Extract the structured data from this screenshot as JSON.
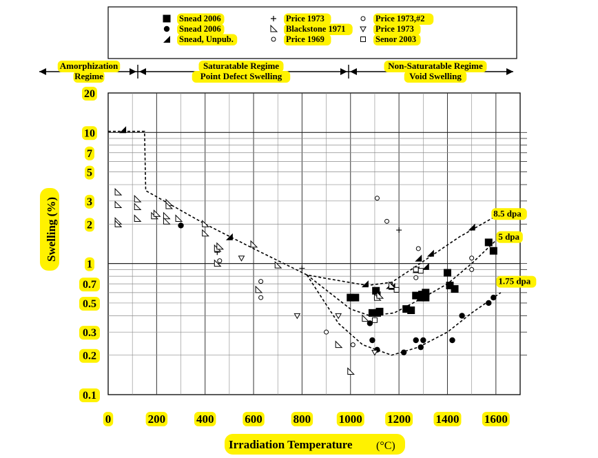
{
  "chart_data": {
    "type": "scatter",
    "title": "",
    "xlabel": "Irradiation Temperature",
    "xlabel_unit": "(°C)",
    "ylabel": "Swelling (%)",
    "x_scale": "linear",
    "y_scale": "log",
    "xlim": [
      0,
      1700
    ],
    "ylim": [
      0.1,
      20
    ],
    "x_ticks": [
      "0",
      "200",
      "400",
      "600",
      "800",
      "1000",
      "1200",
      "1400",
      "1600"
    ],
    "y_ticks": [
      "0.1",
      "0.2",
      "0.3",
      "0.5",
      "0.7",
      "1",
      "2",
      "3",
      "5",
      "7",
      "10",
      "20"
    ],
    "grid": true,
    "legend_position": "top",
    "legend": [
      {
        "name": "Snead 2006",
        "symbol": "filled-square"
      },
      {
        "name": "Snead 2006",
        "symbol": "filled-circle"
      },
      {
        "name": "Snead, Unpub.",
        "symbol": "filled-triangle"
      },
      {
        "name": "Price 1973",
        "symbol": "open-cross"
      },
      {
        "name": "Blackstone 1971",
        "symbol": "open-triangle"
      },
      {
        "name": "Price 1969",
        "symbol": "open-circle"
      },
      {
        "name": "Price 1973,#2",
        "symbol": "open-circle"
      },
      {
        "name": "Price 1973",
        "symbol": "open-down-triangle"
      },
      {
        "name": "Senor 2003",
        "symbol": "open-square"
      }
    ],
    "regimes": [
      {
        "lines": [
          "Amorphization",
          "Regime"
        ],
        "x_range": [
          0,
          125
        ]
      },
      {
        "lines": [
          "Saturatable Regime",
          "Point Defect Swelling"
        ],
        "x_range": [
          125,
          1000
        ]
      },
      {
        "lines": [
          "Non-Saturatable Regime",
          "Void Swelling"
        ],
        "x_range": [
          1000,
          1700
        ]
      }
    ],
    "curve_labels": [
      {
        "text": "8.5 dpa",
        "x": 1590,
        "y": 2.4
      },
      {
        "text": "5 dpa",
        "x": 1610,
        "y": 1.6
      },
      {
        "text": "1.75 dpa",
        "x": 1610,
        "y": 0.73
      }
    ],
    "series": [
      {
        "symbol": "filled-square",
        "points": [
          [
            1000,
            0.55
          ],
          [
            1020,
            0.55
          ],
          [
            1090,
            0.42
          ],
          [
            1110,
            0.42
          ],
          [
            1105,
            0.62
          ],
          [
            1120,
            0.43
          ],
          [
            1230,
            0.45
          ],
          [
            1250,
            0.44
          ],
          [
            1270,
            0.57
          ],
          [
            1295,
            0.58
          ],
          [
            1310,
            0.6
          ],
          [
            1290,
            0.55
          ],
          [
            1310,
            0.55
          ],
          [
            1400,
            0.85
          ],
          [
            1410,
            0.68
          ],
          [
            1430,
            0.64
          ],
          [
            1570,
            1.45
          ],
          [
            1590,
            1.25
          ]
        ]
      },
      {
        "symbol": "filled-circle",
        "points": [
          [
            300,
            1.95
          ],
          [
            1080,
            0.35
          ],
          [
            1090,
            0.26
          ],
          [
            1110,
            0.22
          ],
          [
            1220,
            0.21
          ],
          [
            1270,
            0.26
          ],
          [
            1300,
            0.26
          ],
          [
            1290,
            0.23
          ],
          [
            1420,
            0.26
          ],
          [
            1460,
            0.4
          ],
          [
            1570,
            0.5
          ],
          [
            1590,
            0.55
          ]
        ]
      },
      {
        "symbol": "filled-triangle",
        "points": [
          [
            60,
            10.5
          ],
          [
            500,
            1.6
          ],
          [
            1060,
            0.7
          ],
          [
            1110,
            0.58
          ],
          [
            1160,
            0.68
          ],
          [
            1170,
            0.67
          ],
          [
            1270,
            0.9
          ],
          [
            1280,
            1.1
          ],
          [
            1310,
            0.95
          ],
          [
            1330,
            1.2
          ],
          [
            1500,
            1.9
          ]
        ]
      },
      {
        "symbol": "open-cross",
        "points": [
          [
            450,
            1.22
          ],
          [
            800,
            0.92
          ],
          [
            1200,
            1.8
          ]
        ]
      },
      {
        "symbol": "open-triangle",
        "points": [
          [
            40,
            3.5
          ],
          [
            40,
            2.8
          ],
          [
            40,
            2.1
          ],
          [
            40,
            2.0
          ],
          [
            120,
            3.1
          ],
          [
            120,
            2.7
          ],
          [
            120,
            2.2
          ],
          [
            190,
            2.3
          ],
          [
            200,
            2.4
          ],
          [
            250,
            2.9
          ],
          [
            250,
            2.75
          ],
          [
            240,
            2.3
          ],
          [
            240,
            2.1
          ],
          [
            290,
            2.2
          ],
          [
            400,
            2.0
          ],
          [
            400,
            1.7
          ],
          [
            450,
            1.3
          ],
          [
            460,
            1.35
          ],
          [
            450,
            1.0
          ],
          [
            600,
            1.4
          ],
          [
            620,
            0.63
          ],
          [
            700,
            0.97
          ],
          [
            950,
            0.24
          ],
          [
            1000,
            0.15
          ],
          [
            1060,
            0.38
          ],
          [
            1110,
            0.55
          ],
          [
            1120,
            0.57
          ],
          [
            1170,
            0.68
          ]
        ]
      },
      {
        "symbol": "open-circle",
        "points": [
          [
            460,
            1.05
          ],
          [
            630,
            0.73
          ],
          [
            630,
            0.55
          ],
          [
            900,
            0.3
          ],
          [
            1010,
            0.24
          ]
        ]
      },
      {
        "symbol": "open-circle-2",
        "points": [
          [
            1110,
            3.15
          ],
          [
            1150,
            2.1
          ],
          [
            1280,
            1.3
          ],
          [
            1270,
            0.78
          ],
          [
            1500,
            1.1
          ],
          [
            1500,
            0.9
          ]
        ]
      },
      {
        "symbol": "open-down-triangle",
        "points": [
          [
            550,
            1.1
          ],
          [
            780,
            0.4
          ],
          [
            950,
            0.4
          ],
          [
            1100,
            0.21
          ]
        ]
      },
      {
        "symbol": "open-square",
        "points": [
          [
            1100,
            0.37
          ],
          [
            1190,
            0.63
          ],
          [
            1270,
            0.9
          ],
          [
            1290,
            0.88
          ]
        ]
      }
    ],
    "lines": [
      {
        "points": [
          [
            0,
            10.2
          ],
          [
            150,
            10.2
          ],
          [
            155,
            3.6
          ],
          [
            400,
            2.0
          ],
          [
            600,
            1.3
          ],
          [
            820,
            0.82
          ],
          [
            900,
            0.77
          ],
          [
            1070,
            0.68
          ],
          [
            1170,
            0.72
          ],
          [
            1250,
            0.9
          ],
          [
            1350,
            1.2
          ],
          [
            1450,
            1.6
          ],
          [
            1600,
            2.3
          ]
        ]
      },
      {
        "points": [
          [
            820,
            0.82
          ],
          [
            1000,
            0.45
          ],
          [
            1080,
            0.4
          ],
          [
            1180,
            0.42
          ],
          [
            1300,
            0.55
          ],
          [
            1400,
            0.7
          ],
          [
            1500,
            1.0
          ],
          [
            1600,
            1.5
          ]
        ]
      },
      {
        "points": [
          [
            820,
            0.82
          ],
          [
            950,
            0.35
          ],
          [
            1050,
            0.24
          ],
          [
            1170,
            0.2
          ],
          [
            1280,
            0.23
          ],
          [
            1400,
            0.3
          ],
          [
            1500,
            0.42
          ],
          [
            1620,
            0.6
          ]
        ]
      }
    ]
  }
}
